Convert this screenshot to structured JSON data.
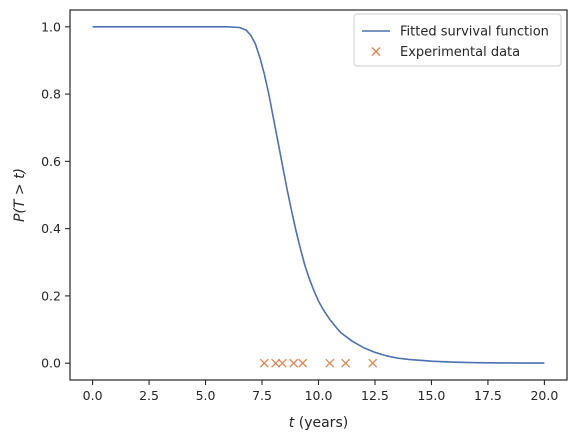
{
  "chart_data": {
    "type": "line",
    "title": "",
    "xlabel_var": "t",
    "xlabel_unit": " (years)",
    "ylabel": "P(T > t)",
    "xlim": [
      -1.0,
      21.0
    ],
    "ylim": [
      -0.05,
      1.05
    ],
    "x_ticks": [
      0.0,
      2.5,
      5.0,
      7.5,
      10.0,
      12.5,
      15.0,
      17.5,
      20.0
    ],
    "x_tick_labels": [
      "0.0",
      "2.5",
      "5.0",
      "7.5",
      "10.0",
      "12.5",
      "15.0",
      "17.5",
      "20.0"
    ],
    "y_ticks": [
      0.0,
      0.2,
      0.4,
      0.6,
      0.8,
      1.0
    ],
    "y_tick_labels": [
      "0.0",
      "0.2",
      "0.4",
      "0.6",
      "0.8",
      "1.0"
    ],
    "grid": false,
    "legend_position": "top-right",
    "series": [
      {
        "name": "Fitted survival function",
        "kind": "line",
        "color": "#4c72b0",
        "x": [
          0.0,
          1.0,
          2.0,
          3.0,
          4.0,
          5.0,
          6.0,
          6.5,
          6.8,
          7.0,
          7.2,
          7.4,
          7.6,
          7.8,
          8.0,
          8.2,
          8.4,
          8.6,
          8.8,
          9.0,
          9.2,
          9.4,
          9.6,
          9.8,
          10.0,
          10.2,
          10.5,
          10.8,
          11.0,
          11.5,
          12.0,
          12.5,
          13.0,
          13.5,
          14.0,
          15.0,
          16.0,
          17.0,
          18.0,
          19.0,
          20.0
        ],
        "y": [
          1.0,
          1.0,
          1.0,
          1.0,
          1.0,
          1.0,
          1.0,
          0.998,
          0.99,
          0.975,
          0.95,
          0.91,
          0.86,
          0.8,
          0.73,
          0.66,
          0.59,
          0.52,
          0.455,
          0.395,
          0.34,
          0.29,
          0.25,
          0.215,
          0.185,
          0.16,
          0.13,
          0.105,
          0.09,
          0.065,
          0.046,
          0.032,
          0.022,
          0.015,
          0.011,
          0.006,
          0.003,
          0.0015,
          0.0008,
          0.0004,
          0.0002
        ]
      },
      {
        "name": "Experimental data",
        "kind": "scatter",
        "marker": "x",
        "color": "#dd8452",
        "x": [
          7.6,
          8.1,
          8.4,
          8.9,
          9.3,
          10.5,
          11.2,
          12.4
        ],
        "y": [
          0,
          0,
          0,
          0,
          0,
          0,
          0,
          0
        ]
      }
    ]
  }
}
